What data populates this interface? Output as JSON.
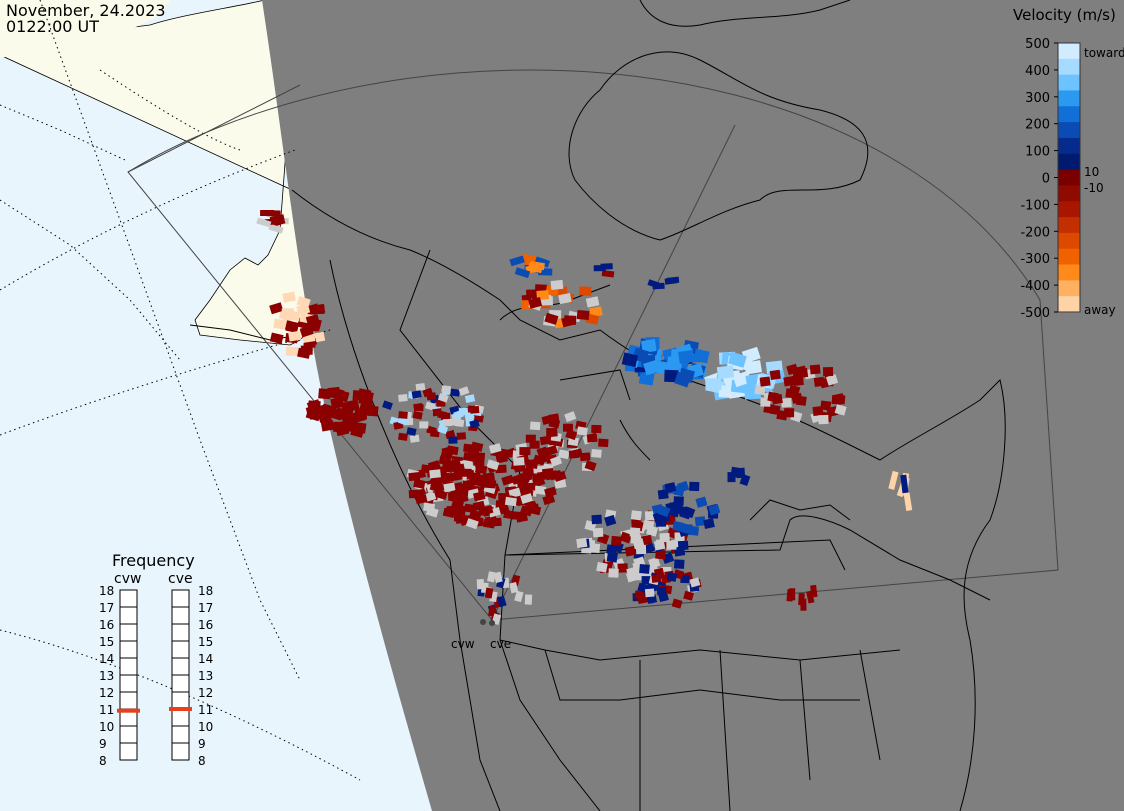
{
  "header": {
    "date": "November, 24.2023",
    "time": "0122:00 UT"
  },
  "legend": {
    "title": "Velocity (m/s)",
    "ticks": [
      "500",
      "400",
      "300",
      "200",
      "100",
      "0",
      "-100",
      "-200",
      "-300",
      "-400",
      "-500"
    ],
    "small_pos": "10",
    "small_neg": "-10",
    "toward_label": "toward",
    "away_label": "away",
    "colors": [
      "#d2ecff",
      "#a6dbff",
      "#6dc3ff",
      "#2b99f2",
      "#1070d7",
      "#0a4cb4",
      "#052c8c",
      "#001a70",
      "#7a0000",
      "#8f0b00",
      "#a91600",
      "#c32f00",
      "#de4900",
      "#f06200",
      "#ff8a1a",
      "#ffb060",
      "#ffd3a8"
    ]
  },
  "frequency": {
    "title": "Frequency",
    "radars": [
      {
        "name": "cvw",
        "current_mhz": 10.9
      },
      {
        "name": "cve",
        "current_mhz": 11.0
      }
    ],
    "scale": [
      "18",
      "17",
      "16",
      "15",
      "14",
      "13",
      "12",
      "11",
      "10",
      "9",
      "8"
    ],
    "marker_color": "#e8401c"
  },
  "map": {
    "site_labels": [
      "cvw",
      "cve"
    ],
    "colors": {
      "ocean": "#e9f5fd",
      "land_day": "#fbfbeb",
      "night": "#7f7f7f",
      "scatter_gray": "#cccccc"
    }
  }
}
